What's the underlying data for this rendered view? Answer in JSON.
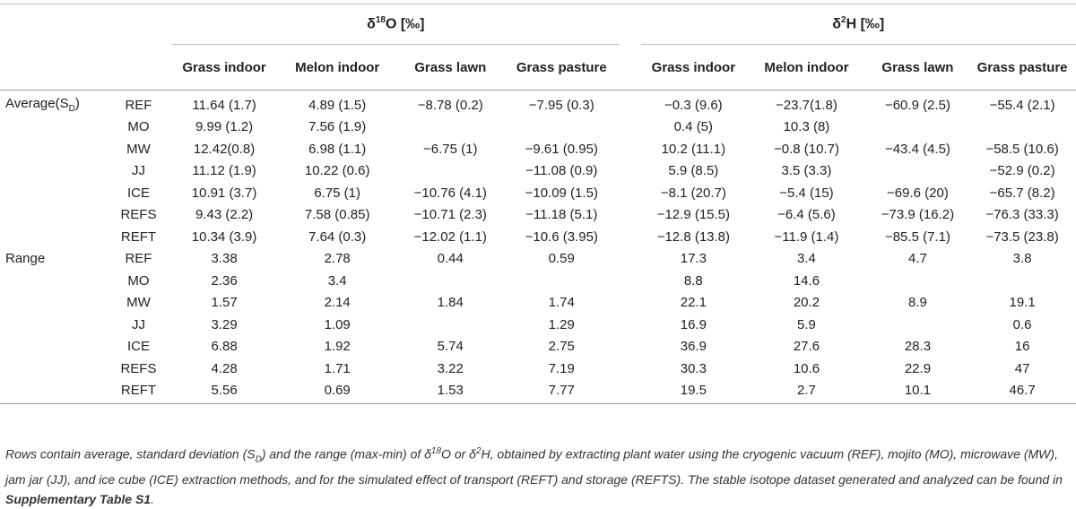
{
  "header": {
    "group1": "δ18O [‰]",
    "group1_prefix": "δ",
    "group1_sup": "18",
    "group1_suffix": "O [‰]",
    "group2_prefix": "δ",
    "group2_sup": "2",
    "group2_suffix": "H [‰]",
    "columns": [
      "Grass indoor",
      "Melon indoor",
      "Grass lawn",
      "Grass pasture",
      "Grass indoor",
      "Melon indoor",
      "Grass lawn",
      "Grass pasture"
    ]
  },
  "sections": [
    {
      "label_main": "Average(S",
      "label_sub": "D",
      "label_end": ")",
      "rows": [
        {
          "code": "REF",
          "o": [
            "11.64 (1.7)",
            "4.89 (1.5)",
            "−8.78 (0.2)",
            "−7.95 (0.3)"
          ],
          "h": [
            "−0.3 (9.6)",
            "−23.7(1.8)",
            "−60.9 (2.5)",
            "−55.4 (2.1)"
          ]
        },
        {
          "code": "MO",
          "o": [
            "9.99 (1.2)",
            "7.56 (1.9)",
            "",
            ""
          ],
          "h": [
            "0.4 (5)",
            "10.3 (8)",
            "",
            ""
          ]
        },
        {
          "code": "MW",
          "o": [
            "12.42(0.8)",
            "6.98 (1.1)",
            "−6.75 (1)",
            "−9.61 (0.95)"
          ],
          "h": [
            "10.2 (11.1)",
            "−0.8 (10.7)",
            "−43.4 (4.5)",
            "−58.5 (10.6)"
          ]
        },
        {
          "code": "JJ",
          "o": [
            "11.12 (1.9)",
            "10.22 (0.6)",
            "",
            "−11.08 (0.9)"
          ],
          "h": [
            "5.9 (8.5)",
            "3.5 (3.3)",
            "",
            "−52.9 (0.2)"
          ]
        },
        {
          "code": "ICE",
          "o": [
            "10.91 (3.7)",
            "6.75 (1)",
            "−10.76 (4.1)",
            "−10.09 (1.5)"
          ],
          "h": [
            "−8.1 (20.7)",
            "−5.4 (15)",
            "−69.6 (20)",
            "−65.7 (8.2)"
          ]
        },
        {
          "code": "REFS",
          "o": [
            "9.43 (2.2)",
            "7.58 (0.85)",
            "−10.71 (2.3)",
            "−11.18 (5.1)"
          ],
          "h": [
            "−12.9 (15.5)",
            "−6.4 (5.6)",
            "−73.9 (16.2)",
            "−76.3 (33.3)"
          ]
        },
        {
          "code": "REFT",
          "o": [
            "10.34 (3.9)",
            "7.64 (0.3)",
            "−12.02 (1.1)",
            "−10.6 (3.95)"
          ],
          "h": [
            "−12.8 (13.8)",
            "−11.9 (1.4)",
            "−85.5 (7.1)",
            "−73.5 (23.8)"
          ]
        }
      ]
    },
    {
      "label_main": "Range",
      "label_sub": "",
      "label_end": "",
      "rows": [
        {
          "code": "REF",
          "o": [
            "3.38",
            "2.78",
            "0.44",
            "0.59"
          ],
          "h": [
            "17.3",
            "3.4",
            "4.7",
            "3.8"
          ]
        },
        {
          "code": "MO",
          "o": [
            "2.36",
            "3.4",
            "",
            ""
          ],
          "h": [
            "8.8",
            "14.6",
            "",
            ""
          ]
        },
        {
          "code": "MW",
          "o": [
            "1.57",
            "2.14",
            "1.84",
            "1.74"
          ],
          "h": [
            "22.1",
            "20.2",
            "8.9",
            "19.1"
          ]
        },
        {
          "code": "JJ",
          "o": [
            "3.29",
            "1.09",
            "",
            "1.29"
          ],
          "h": [
            "16.9",
            "5.9",
            "",
            "0.6"
          ]
        },
        {
          "code": "ICE",
          "o": [
            "6.88",
            "1.92",
            "5.74",
            "2.75"
          ],
          "h": [
            "36.9",
            "27.6",
            "28.3",
            "16"
          ]
        },
        {
          "code": "REFS",
          "o": [
            "4.28",
            "1.71",
            "3.22",
            "7.19"
          ],
          "h": [
            "30.3",
            "10.6",
            "22.9",
            "47"
          ]
        },
        {
          "code": "REFT",
          "o": [
            "5.56",
            "0.69",
            "1.53",
            "7.77"
          ],
          "h": [
            "19.5",
            "2.7",
            "10.1",
            "46.7"
          ]
        }
      ]
    }
  ],
  "caption": {
    "p1": "Rows contain average, standard deviation (S",
    "p1_sub": "D",
    "p2": ") and the range (max-min) of δ",
    "p2_sup": "18",
    "p3": "O or δ",
    "p3_sup": "2",
    "p4": "H, obtained by extracting plant water using the cryogenic vacuum (REF), mojito (MO), microwave (MW), jam jar (JJ), and ice cube (ICE) extraction methods, and for the simulated effect of transport (REFT) and storage (REFTS). The stable isotope dataset generated and analyzed can be found in ",
    "link": "Supplementary Table S1",
    "p5": "."
  }
}
